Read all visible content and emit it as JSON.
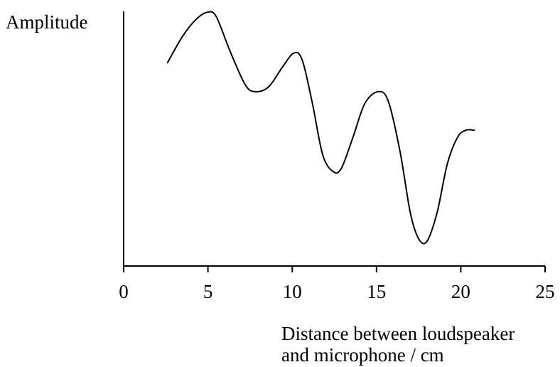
{
  "chart_data": {
    "type": "line",
    "title": "",
    "ylabel": "Amplitude",
    "xlabel_lines": [
      "Distance between loudspeaker",
      "and microphone / cm"
    ],
    "xlim": [
      0,
      25
    ],
    "ylim": [
      0,
      100
    ],
    "xticks": [
      0,
      5,
      10,
      15,
      20,
      25
    ],
    "xtick_labels": [
      "0",
      "5",
      "10",
      "15",
      "20",
      "25"
    ],
    "grid": false,
    "y_tick_labels_shown": false,
    "series": [
      {
        "x": [
          2.6,
          3.5,
          4.3,
          5.0,
          5.5,
          6.3,
          7.2,
          7.8,
          8.6,
          9.4,
          10.1,
          10.6,
          11.2,
          11.8,
          12.4,
          12.9,
          13.6,
          14.3,
          15.1,
          15.7,
          16.4,
          17.0,
          17.5,
          18.0,
          18.6,
          19.2,
          19.8,
          20.3,
          20.8
        ],
        "y": [
          79,
          90,
          97,
          100,
          98,
          84,
          70,
          67,
          69,
          77,
          83,
          80,
          62,
          41,
          34,
          35,
          48,
          62,
          67,
          63,
          42,
          17,
          6,
          5,
          17,
          37,
          48,
          51,
          51
        ]
      }
    ]
  }
}
